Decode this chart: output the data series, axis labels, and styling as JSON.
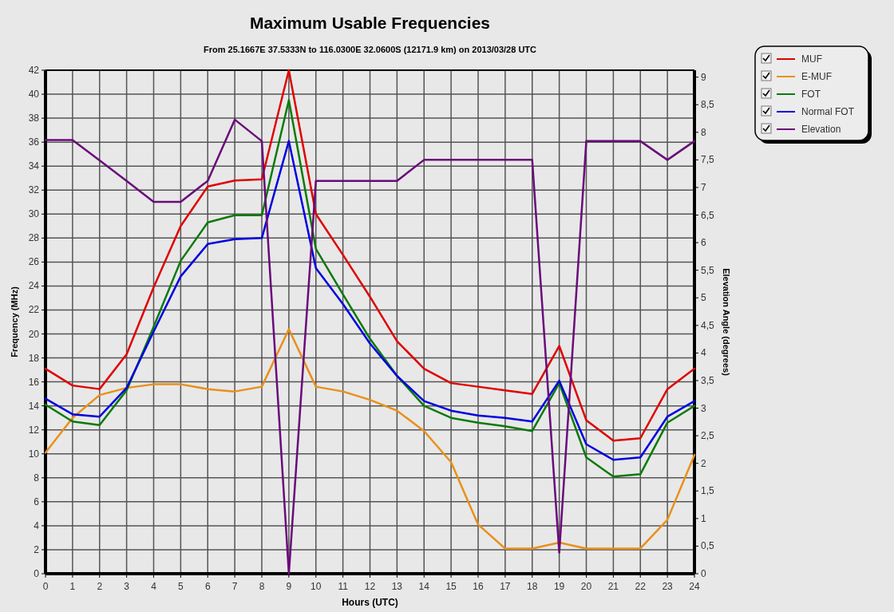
{
  "chart_data": {
    "type": "line",
    "title": "Maximum Usable Frequencies",
    "subtitle": "From  25.1667E 37.5333N to 116.0300E 32.0600S (12171.9 km) on 2013/03/28 UTC",
    "xlabel": "Hours (UTC)",
    "ylabel": "Frequency (MHz)",
    "y2label": "Elevation Angle (degrees)",
    "x": [
      0,
      1,
      2,
      3,
      4,
      5,
      6,
      7,
      8,
      9,
      10,
      11,
      12,
      13,
      14,
      15,
      16,
      17,
      18,
      19,
      20,
      21,
      22,
      23,
      24
    ],
    "xlim": [
      0,
      24
    ],
    "xticks": [
      0,
      1,
      2,
      3,
      4,
      5,
      6,
      7,
      8,
      9,
      10,
      11,
      12,
      13,
      14,
      15,
      16,
      17,
      18,
      19,
      20,
      21,
      22,
      23,
      24
    ],
    "ylim": [
      0,
      42
    ],
    "yticks": [
      0,
      2,
      4,
      6,
      8,
      10,
      12,
      14,
      16,
      18,
      20,
      22,
      24,
      26,
      28,
      30,
      32,
      34,
      36,
      38,
      40,
      42
    ],
    "y2lim": [
      0,
      9.125
    ],
    "y2ticks": [
      0,
      {
        "value": 0.5,
        "label": "0,5"
      },
      1,
      {
        "value": 1.5,
        "label": "1,5"
      },
      2,
      {
        "value": 2.5,
        "label": "2,5"
      },
      3,
      {
        "value": 3.5,
        "label": "3,5"
      },
      4,
      {
        "value": 4.5,
        "label": "4,5"
      },
      5,
      {
        "value": 5.5,
        "label": "5,5"
      },
      6,
      {
        "value": 6.5,
        "label": "6,5"
      },
      7,
      {
        "value": 7.5,
        "label": "7,5"
      },
      8,
      {
        "value": 8.5,
        "label": "8,5"
      },
      9
    ],
    "grid": true,
    "legend": "top right",
    "marker": "none",
    "line_style": "solid",
    "series": [
      {
        "name": "MUF",
        "color": "#e00000",
        "values": [
          17.1,
          15.7,
          15.4,
          18.3,
          23.9,
          29.0,
          32.3,
          32.8,
          32.9,
          42,
          30.0,
          26.6,
          23.1,
          19.4,
          17.1,
          15.9,
          15.6,
          15.3,
          15.0,
          19.0,
          12.8,
          11.1,
          11.3,
          15.4,
          17.1
        ]
      },
      {
        "name": "E-MUF",
        "color": "#e8901a",
        "values": [
          10.1,
          13.0,
          14.9,
          15.5,
          15.8,
          15.8,
          15.4,
          15.2,
          15.6,
          20.4,
          15.6,
          15.2,
          14.5,
          13.6,
          11.9,
          9.3,
          4.1,
          2.1,
          2.1,
          2.6,
          2.1,
          2.1,
          2.1,
          4.5,
          9.9
        ]
      },
      {
        "name": "FOT",
        "color": "#0a7a0a",
        "values": [
          14.1,
          12.7,
          12.4,
          15.3,
          20.6,
          26.1,
          29.3,
          29.9,
          29.9,
          39.5,
          27.1,
          23.3,
          19.6,
          16.5,
          14.0,
          13.0,
          12.6,
          12.3,
          11.9,
          15.9,
          9.7,
          8.1,
          8.3,
          12.6,
          14.0
        ]
      },
      {
        "name": "Normal FOT",
        "color": "#0000e0",
        "values": [
          14.6,
          13.3,
          13.1,
          15.5,
          20.2,
          24.8,
          27.5,
          27.9,
          28.0,
          36.1,
          25.5,
          22.5,
          19.2,
          16.5,
          14.4,
          13.6,
          13.2,
          13.0,
          12.7,
          16.1,
          10.8,
          9.5,
          9.7,
          13.1,
          14.4
        ]
      },
      {
        "name": "Elevation",
        "color": "#6a0a7a",
        "axis": "y2",
        "values": [
          7.86,
          7.86,
          7.49,
          7.12,
          6.74,
          6.74,
          7.12,
          8.23,
          7.84,
          0,
          7.12,
          7.12,
          7.12,
          7.12,
          7.5,
          7.5,
          7.5,
          7.5,
          7.5,
          0.38,
          7.84,
          7.84,
          7.84,
          7.5,
          7.84
        ]
      }
    ]
  }
}
